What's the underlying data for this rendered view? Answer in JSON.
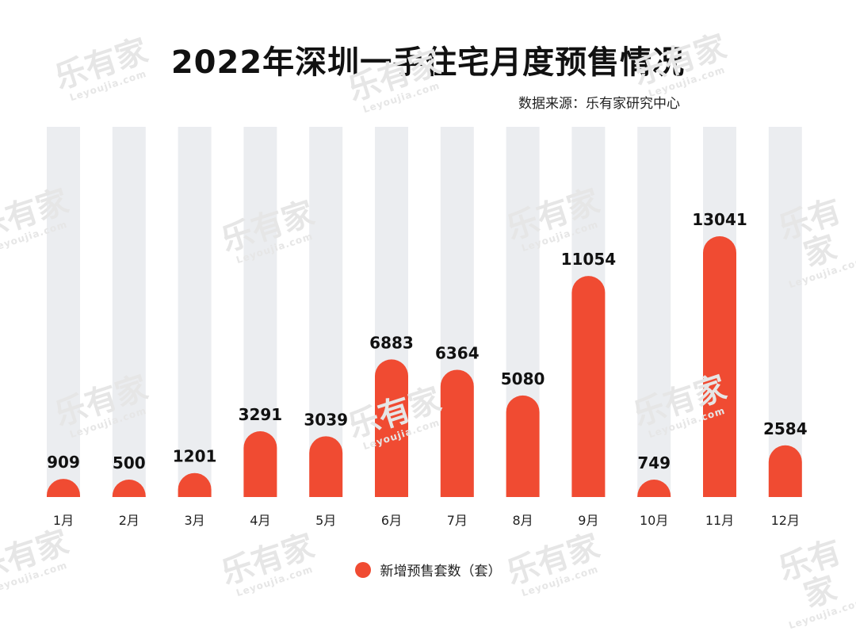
{
  "header": {
    "title": "2022年深圳一手住宅月度预售情况",
    "source": "数据来源：乐有家研究中心"
  },
  "watermark": {
    "main": "乐有家",
    "sub": "Leyoujia.com"
  },
  "colors": {
    "bar": "#f04b32",
    "track": "#ebedf0",
    "text": "#111111"
  },
  "chart_data": {
    "type": "bar",
    "title": "2022年深圳一手住宅月度预售情况",
    "categories": [
      "1月",
      "2月",
      "3月",
      "4月",
      "5月",
      "6月",
      "7月",
      "8月",
      "9月",
      "10月",
      "11月",
      "12月"
    ],
    "series": [
      {
        "name": "新增预售套数（套）",
        "values": [
          909,
          500,
          1201,
          3291,
          3039,
          6883,
          6364,
          5080,
          11054,
          749,
          13041,
          2584
        ]
      }
    ],
    "ylim": [
      0,
      16000
    ],
    "grid": false,
    "legend": "bottom-center"
  }
}
